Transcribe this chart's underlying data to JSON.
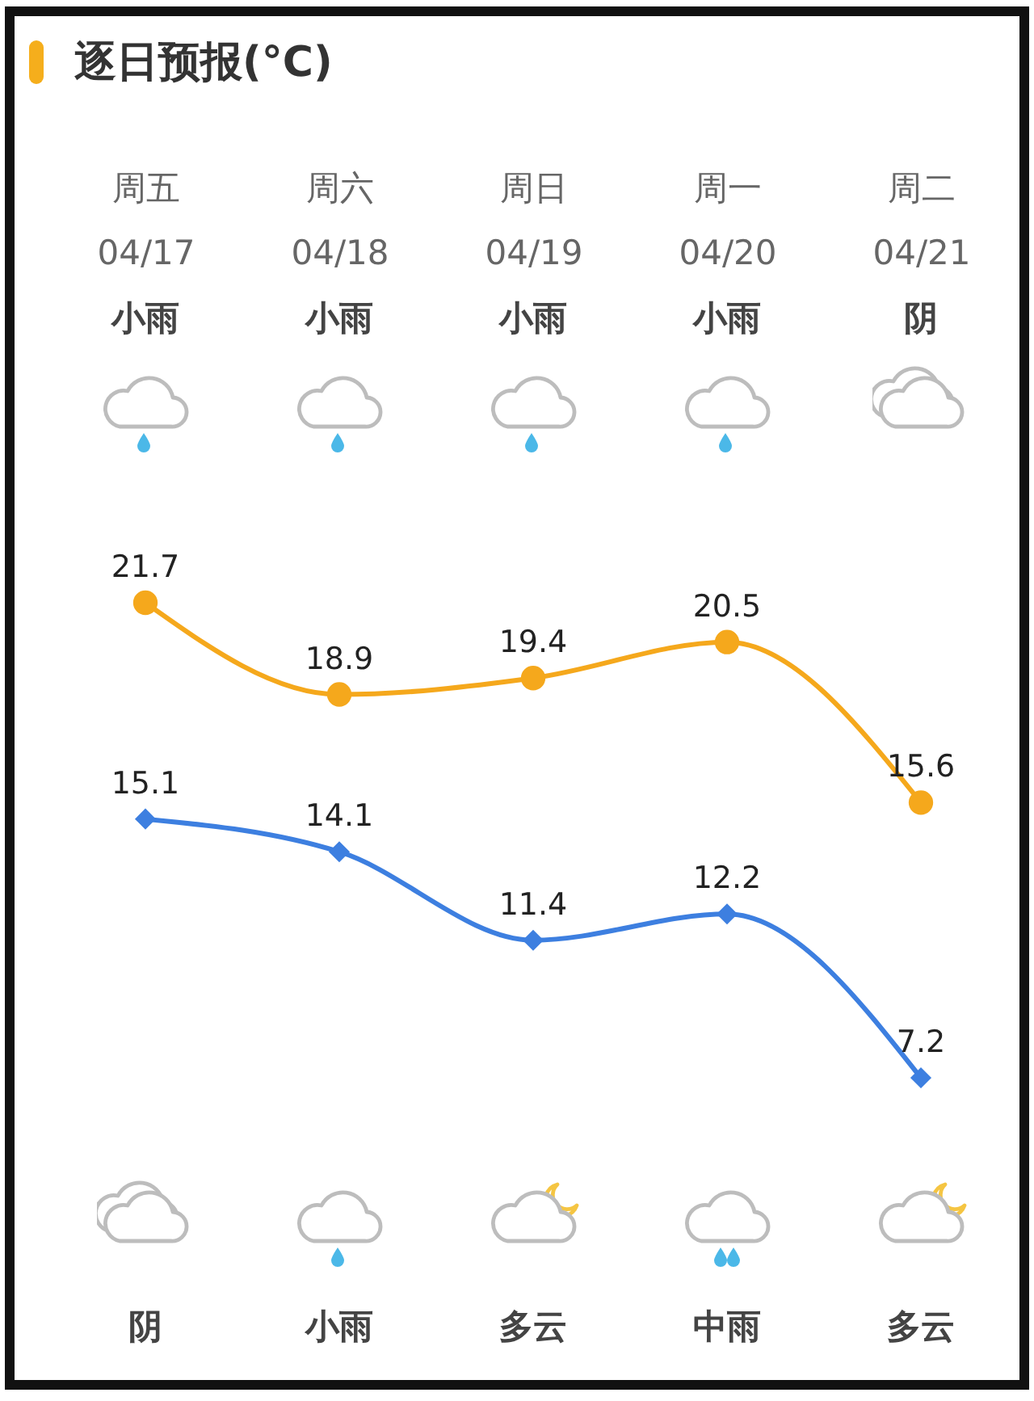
{
  "chart_data": {
    "type": "line",
    "title": "逐日预报(°C)",
    "categories": [
      "周五\n04/17",
      "周六\n04/18",
      "周日\n04/19",
      "周一\n04/20",
      "周二\n04/21"
    ],
    "series": [
      {
        "color": "#f5a81c",
        "marker": "circle",
        "values": [
          21.7,
          18.9,
          19.4,
          20.5,
          15.6
        ]
      },
      {
        "color": "#3d7fe0",
        "marker": "diamond",
        "values": [
          15.1,
          14.1,
          11.4,
          12.2,
          7.2
        ]
      }
    ],
    "data_labels": true,
    "tick_labels": "x",
    "annotations": [
      "小雨",
      "小雨",
      "小雨",
      "小雨",
      "阴",
      "阴",
      "小雨",
      "多云",
      "中雨",
      "多云"
    ]
  }
}
